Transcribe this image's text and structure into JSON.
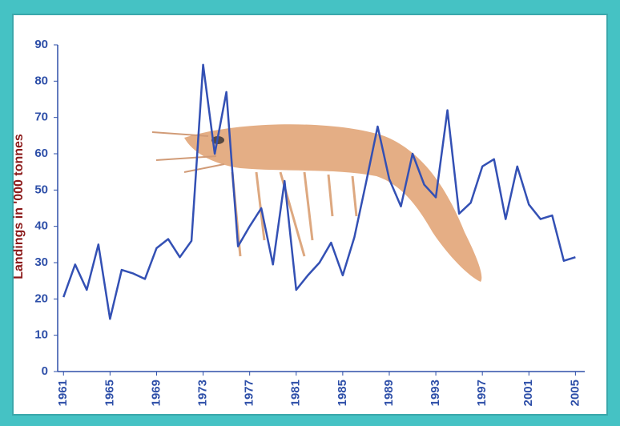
{
  "chart_data": {
    "type": "line",
    "y_label": "Landings in '000 tonnes",
    "x": [
      1961,
      1962,
      1963,
      1964,
      1965,
      1966,
      1967,
      1968,
      1969,
      1970,
      1971,
      1972,
      1973,
      1974,
      1975,
      1976,
      1977,
      1978,
      1979,
      1980,
      1981,
      1982,
      1983,
      1984,
      1985,
      1986,
      1987,
      1988,
      1989,
      1990,
      1991,
      1992,
      1993,
      1994,
      1995,
      1996,
      1997,
      1998,
      1999,
      2000,
      2001,
      2002,
      2003,
      2004,
      2005
    ],
    "series": [
      {
        "color": "#3350b4",
        "values": [
          20.5,
          29.5,
          22.5,
          35,
          14.5,
          28,
          27,
          25.5,
          34,
          36.5,
          31.5,
          36,
          84.5,
          60,
          77,
          34.5,
          40,
          45,
          29.5,
          52.5,
          22.5,
          26.5,
          30,
          35.5,
          26.5,
          37,
          52,
          67.5,
          53,
          45.5,
          60,
          51.5,
          48,
          72,
          43.5,
          46.5,
          56.5,
          58.5,
          42,
          56.5,
          46,
          42,
          43,
          30.5,
          31.5
        ]
      }
    ],
    "xlim": [
      1960.5,
      2005.8
    ],
    "xticks": [
      1961,
      1965,
      1969,
      1973,
      1977,
      1981,
      1985,
      1989,
      1993,
      1997,
      2001,
      2005
    ],
    "ylim": [
      0,
      90
    ],
    "yticks": [
      0,
      10,
      20,
      30,
      40,
      50,
      60,
      70,
      80,
      90
    ],
    "grid": false
  }
}
